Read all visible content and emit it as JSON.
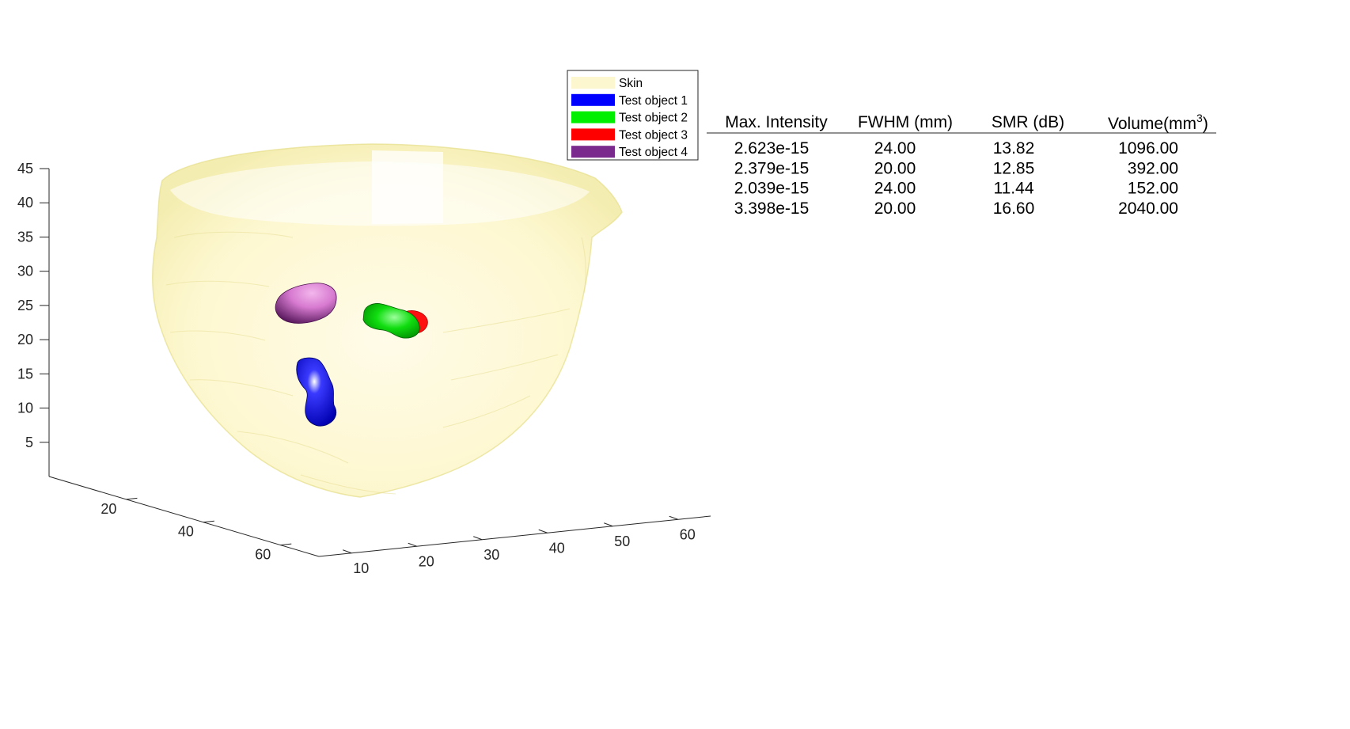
{
  "chart_data": {
    "type": "3d-isosurface",
    "title": "",
    "xlabel": "",
    "ylabel": "",
    "zlabel": "",
    "z_axis": {
      "range": [
        0,
        45
      ],
      "ticks": [
        "5",
        "10",
        "15",
        "20",
        "25",
        "30",
        "35",
        "40",
        "45"
      ]
    },
    "y_axis": {
      "range": [
        0,
        70
      ],
      "ticks": [
        "20",
        "40",
        "60"
      ]
    },
    "x_axis": {
      "range": [
        5,
        65
      ],
      "ticks": [
        "10",
        "20",
        "30",
        "40",
        "50",
        "60"
      ]
    },
    "grid": false,
    "legend_placement": "top-center",
    "series": [
      {
        "name": "Skin",
        "color": "#fdf7d0"
      },
      {
        "name": "Test object 1",
        "color": "#0000ff"
      },
      {
        "name": "Test object 2",
        "color": "#00ee00"
      },
      {
        "name": "Test object 3",
        "color": "#ff0000"
      },
      {
        "name": "Test object 4",
        "color": "#7a2a8c"
      }
    ],
    "table": {
      "columns": [
        "Max. Intensity",
        "FWHM (mm)",
        "SMR (dB)",
        "Volume(mm",
        "3",
        ")"
      ],
      "rows": [
        [
          "2.623e-15",
          "24.00",
          "13.82",
          "1096.00"
        ],
        [
          "2.379e-15",
          "20.00",
          "12.85",
          "392.00"
        ],
        [
          "2.039e-15",
          "24.00",
          "11.44",
          "152.00"
        ],
        [
          "3.398e-15",
          "20.00",
          "16.60",
          "2040.00"
        ]
      ]
    }
  }
}
